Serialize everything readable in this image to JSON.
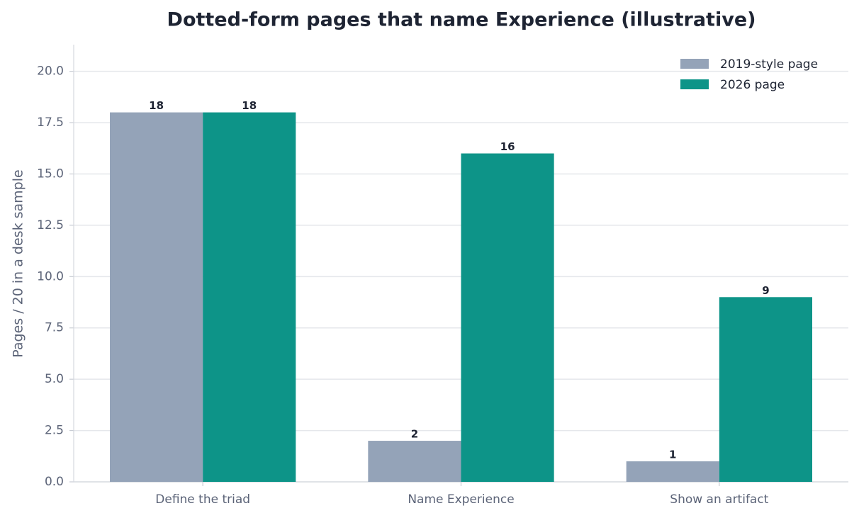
{
  "chart_data": {
    "type": "grouped_bar",
    "title": "Dotted-form pages that name Experience (illustrative)",
    "y_label": "Pages / 20 in a desk sample",
    "categories": [
      "Define the triad",
      "Name Experience",
      "Show an artifact"
    ],
    "series": [
      {
        "name": "2019-style page",
        "color": "#94a3b8",
        "values": [
          18,
          2,
          1
        ]
      },
      {
        "name": "2026 page",
        "color": "#0d9488",
        "values": [
          18,
          16,
          9
        ]
      }
    ],
    "ylim": [
      0,
      21.3
    ],
    "yticks": [
      {
        "value": 0,
        "label": "0.0"
      },
      2.5,
      {
        "value": 5,
        "label": "5.0"
      },
      7.5,
      {
        "value": 10,
        "label": "10.0"
      },
      12.5,
      {
        "value": 15,
        "label": "15.0"
      },
      17.5,
      {
        "value": 20,
        "label": "20.0"
      }
    ],
    "grid": true,
    "legend": "upper-right"
  }
}
